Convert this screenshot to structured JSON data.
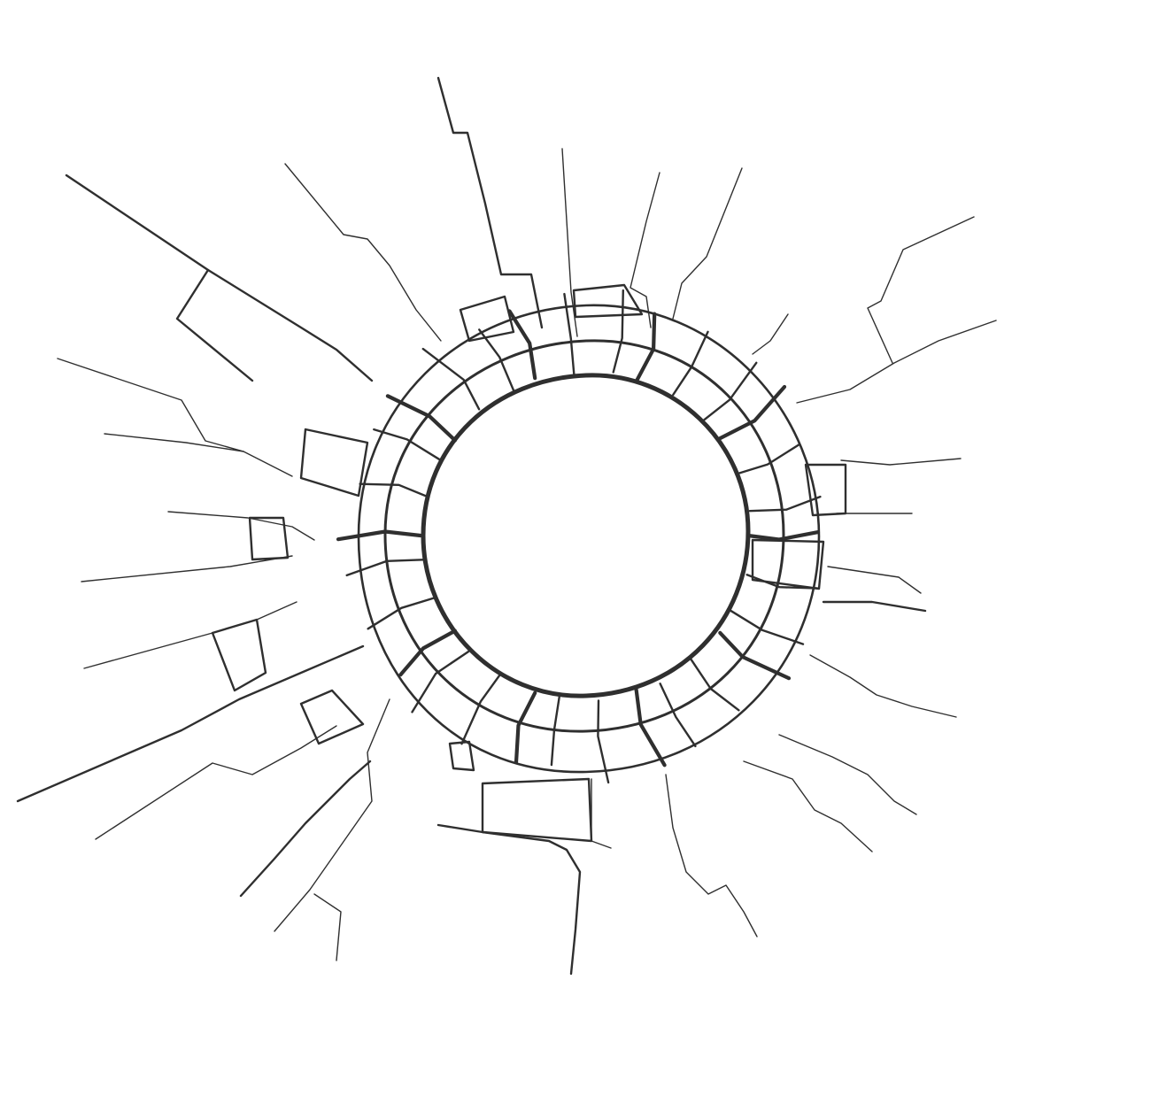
{
  "image": {
    "subject": "shattered-glass-bullet-hole-icon",
    "colors": {
      "background": "#ffffff",
      "crack_dark": "#2f2f2f",
      "crack_light": "#4a4a4a"
    }
  }
}
